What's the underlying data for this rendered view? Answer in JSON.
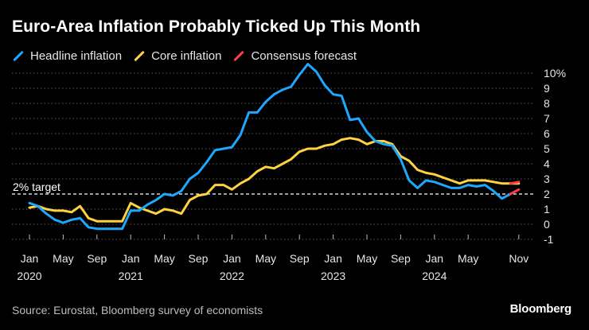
{
  "header": {
    "title": "Euro-Area Inflation Probably Ticked Up This Month"
  },
  "footer": {
    "source": "Source: Eurostat, Bloomberg survey of economists",
    "brand": "Bloomberg"
  },
  "chart_data": {
    "type": "line",
    "title": "Euro-Area Inflation Probably Ticked Up This Month",
    "x_start": "2020-01",
    "x_end": "2024-11",
    "ylim": [
      -1,
      10
    ],
    "y_ticks": [
      -1,
      0,
      1,
      2,
      3,
      4,
      5,
      6,
      7,
      8,
      9,
      10
    ],
    "y_tick_labels": [
      "-1",
      "0",
      "1",
      "2",
      "3",
      "4",
      "5",
      "6",
      "7",
      "8",
      "9",
      "10%"
    ],
    "x_ticks": [
      {
        "month_index": 0,
        "month": "Jan",
        "year": "2020"
      },
      {
        "month_index": 4,
        "month": "May",
        "year": ""
      },
      {
        "month_index": 8,
        "month": "Sep",
        "year": ""
      },
      {
        "month_index": 12,
        "month": "Jan",
        "year": "2021"
      },
      {
        "month_index": 16,
        "month": "May",
        "year": ""
      },
      {
        "month_index": 20,
        "month": "Sep",
        "year": ""
      },
      {
        "month_index": 24,
        "month": "Jan",
        "year": "2022"
      },
      {
        "month_index": 28,
        "month": "May",
        "year": ""
      },
      {
        "month_index": 32,
        "month": "Sep",
        "year": ""
      },
      {
        "month_index": 36,
        "month": "Jan",
        "year": "2023"
      },
      {
        "month_index": 40,
        "month": "May",
        "year": ""
      },
      {
        "month_index": 44,
        "month": "Sep",
        "year": ""
      },
      {
        "month_index": 48,
        "month": "Jan",
        "year": "2024"
      },
      {
        "month_index": 52,
        "month": "May",
        "year": ""
      },
      {
        "month_index": 58,
        "month": "Nov",
        "year": ""
      }
    ],
    "reference_line": {
      "value": 2,
      "label": "2% target"
    },
    "series": [
      {
        "name": "Headline inflation",
        "color": "#1ea7ff",
        "values": [
          1.4,
          1.2,
          0.7,
          0.3,
          0.1,
          0.3,
          0.4,
          -0.2,
          -0.3,
          -0.3,
          -0.3,
          -0.3,
          0.9,
          0.9,
          1.3,
          1.6,
          2.0,
          1.9,
          2.2,
          3.0,
          3.4,
          4.1,
          4.9,
          5.0,
          5.1,
          5.9,
          7.4,
          7.4,
          8.1,
          8.6,
          8.9,
          9.1,
          9.9,
          10.6,
          10.1,
          9.2,
          8.6,
          8.5,
          6.9,
          7.0,
          6.1,
          5.5,
          5.3,
          5.2,
          4.3,
          2.9,
          2.4,
          2.9,
          2.8,
          2.6,
          2.4,
          2.4,
          2.6,
          2.5,
          2.6,
          2.2,
          1.7,
          2.0
        ]
      },
      {
        "name": "Core inflation",
        "color": "#ffd23f",
        "values": [
          1.1,
          1.2,
          1.0,
          0.9,
          0.9,
          0.8,
          1.2,
          0.4,
          0.2,
          0.2,
          0.2,
          0.2,
          1.4,
          1.1,
          0.9,
          0.7,
          1.0,
          0.9,
          0.7,
          1.6,
          1.9,
          2.0,
          2.6,
          2.6,
          2.3,
          2.7,
          3.0,
          3.5,
          3.8,
          3.7,
          4.0,
          4.3,
          4.8,
          5.0,
          5.0,
          5.2,
          5.3,
          5.6,
          5.7,
          5.6,
          5.3,
          5.5,
          5.5,
          5.3,
          4.5,
          4.2,
          3.6,
          3.4,
          3.3,
          3.1,
          2.9,
          2.7,
          2.9,
          2.9,
          2.9,
          2.8,
          2.7,
          2.7,
          2.7
        ]
      },
      {
        "name": "Consensus forecast",
        "color": "#ff3b4a",
        "segments": [
          {
            "from_index": 57,
            "values": [
              2.0,
              2.3
            ]
          },
          {
            "from_index": 57,
            "values": [
              2.7,
              2.8
            ]
          }
        ]
      }
    ]
  }
}
